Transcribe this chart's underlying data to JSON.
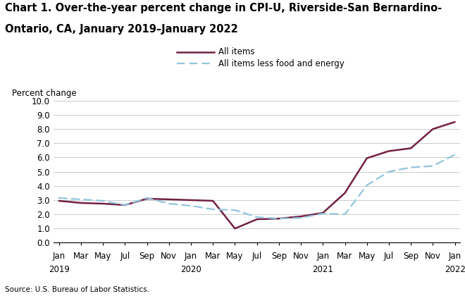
{
  "title_line1": "Chart 1. Over-the-year percent change in CPI-U, Riverside-San Bernardino-",
  "title_line2": "Ontario, CA, January 2019–January 2022",
  "ylabel": "Percent change",
  "source": "Source: U.S. Bureau of Labor Statistics.",
  "ylim": [
    0.0,
    10.0
  ],
  "yticks": [
    0.0,
    1.0,
    2.0,
    3.0,
    4.0,
    5.0,
    6.0,
    7.0,
    8.0,
    9.0,
    10.0
  ],
  "x_labels_top": [
    "Jan",
    "Mar",
    "May",
    "Jul",
    "Sep",
    "Nov",
    "Jan",
    "Mar",
    "May",
    "Jul",
    "Sep",
    "Nov",
    "Jan",
    "Mar",
    "May",
    "Jul",
    "Sep",
    "Nov",
    "Jan"
  ],
  "x_labels_year": [
    "2019",
    "",
    "",
    "",
    "",
    "",
    "2020",
    "",
    "",
    "",
    "",
    "",
    "2021",
    "",
    "",
    "",
    "",
    "",
    "2022"
  ],
  "x_tick_positions": [
    0,
    2,
    4,
    6,
    8,
    10,
    12,
    14,
    16,
    18,
    20,
    22,
    24,
    26,
    28,
    30,
    32,
    34,
    36
  ],
  "all_items": [
    2.95,
    2.8,
    2.75,
    2.65,
    3.1,
    3.05,
    3.0,
    2.95,
    1.0,
    1.65,
    1.7,
    1.85,
    2.1,
    3.5,
    5.95,
    6.45,
    6.65,
    8.0,
    8.5
  ],
  "all_items_less": [
    3.15,
    3.05,
    2.95,
    2.65,
    3.15,
    2.75,
    2.6,
    2.35,
    2.3,
    1.8,
    1.7,
    1.75,
    2.05,
    2.0,
    4.05,
    5.0,
    5.3,
    5.4,
    6.2
  ],
  "all_items_color": "#722043",
  "all_items_less_color": "#92C5DE",
  "all_items_lw": 1.8,
  "all_items_less_lw": 1.6,
  "grid_color": "#cccccc",
  "bg_color": "#ffffff",
  "legend_label1": "All items",
  "legend_label2": "All items less food and energy",
  "title_fontsize": 10.5,
  "axis_fontsize": 8.5
}
